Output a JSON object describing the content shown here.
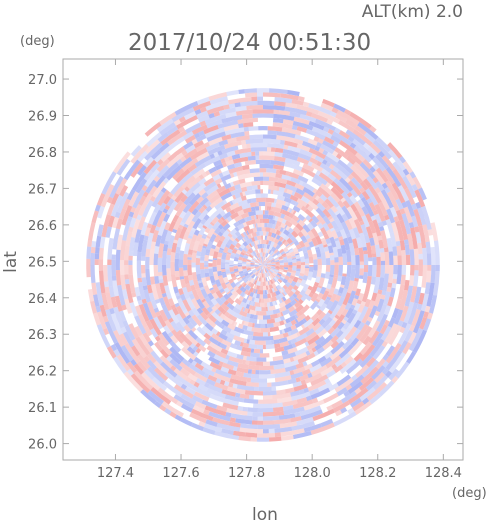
{
  "header": {
    "altitude": "ALT(km) 2.0",
    "timestamp": "2017/10/24 00:51:30"
  },
  "chart_data": {
    "type": "heatmap",
    "description_free": true,
    "xlabel": "lon",
    "ylabel": "lat",
    "x_unit": "(deg)",
    "y_unit": "(deg)",
    "xlim": [
      127.24,
      128.46
    ],
    "ylim": [
      25.955,
      27.055
    ],
    "x_ticks": [
      127.4,
      127.6,
      127.8,
      128.0,
      128.2,
      128.4
    ],
    "x_tick_labels": [
      "127.4",
      "127.6",
      "127.8",
      "128.0",
      "128.2",
      "128.4"
    ],
    "y_ticks": [
      26.0,
      26.1,
      26.2,
      26.3,
      26.4,
      26.5,
      26.6,
      26.7,
      26.8,
      26.9,
      27.0
    ],
    "y_tick_labels": [
      "26.0",
      "26.1",
      "26.2",
      "26.3",
      "26.4",
      "26.5",
      "26.6",
      "26.7",
      "26.8",
      "26.9",
      "27.0"
    ],
    "radar_center": {
      "lon": 127.85,
      "lat": 26.49
    },
    "radar_range_deg_lat": 0.485,
    "colors": {
      "positive": "#f4a7a7",
      "negative": "#a9b3f3",
      "frame": "#aaaaaa",
      "text": "#666666"
    },
    "grid": false
  }
}
